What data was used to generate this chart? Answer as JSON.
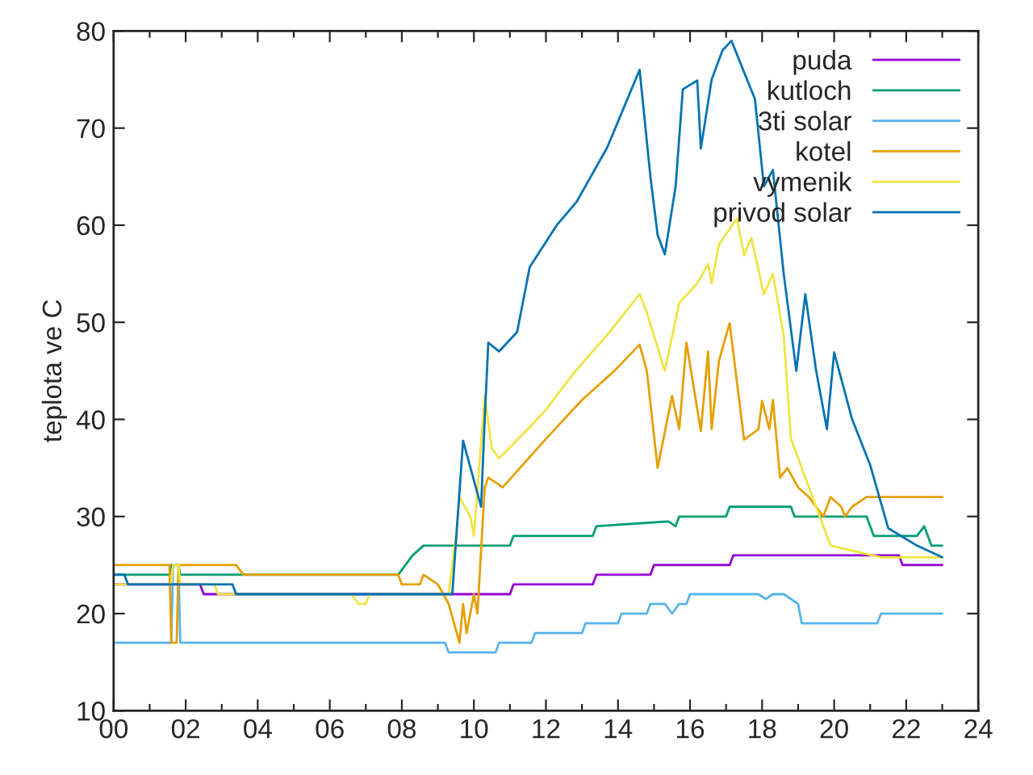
{
  "chart_data": {
    "type": "line",
    "ylabel": "teplota ve C",
    "xlim": [
      0,
      24
    ],
    "ylim": [
      10,
      80
    ],
    "xticks": [
      {
        "value": 0,
        "label": "00"
      },
      {
        "value": 1,
        "label": null
      },
      {
        "value": 2,
        "label": "02"
      },
      {
        "value": 3,
        "label": null
      },
      {
        "value": 4,
        "label": "04"
      },
      {
        "value": 5,
        "label": null
      },
      {
        "value": 6,
        "label": "06"
      },
      {
        "value": 7,
        "label": null
      },
      {
        "value": 8,
        "label": "08"
      },
      {
        "value": 9,
        "label": null
      },
      {
        "value": 10,
        "label": "10"
      },
      {
        "value": 11,
        "label": null
      },
      {
        "value": 12,
        "label": "12"
      },
      {
        "value": 13,
        "label": null
      },
      {
        "value": 14,
        "label": "14"
      },
      {
        "value": 15,
        "label": null
      },
      {
        "value": 16,
        "label": "16"
      },
      {
        "value": 17,
        "label": null
      },
      {
        "value": 18,
        "label": "18"
      },
      {
        "value": 19,
        "label": null
      },
      {
        "value": 20,
        "label": "20"
      },
      {
        "value": 21,
        "label": null
      },
      {
        "value": 22,
        "label": "22"
      },
      {
        "value": 23,
        "label": null
      },
      {
        "value": 24,
        "label": "24"
      }
    ],
    "yticks": [
      10,
      20,
      30,
      40,
      50,
      60,
      70,
      80
    ],
    "grid": false,
    "legend": "top right",
    "marker": "none",
    "line_style": "solid",
    "series": [
      {
        "name": "puda",
        "color": "#9400d3",
        "x": [
          0,
          2.4,
          2.5,
          11.0,
          11.1,
          13.3,
          13.4,
          14.9,
          15.0,
          17.1,
          17.2,
          21.8,
          21.9,
          23.0
        ],
        "values": [
          23,
          23,
          22,
          22,
          23,
          23,
          24,
          24,
          25,
          25,
          26,
          26,
          25,
          25
        ]
      },
      {
        "name": "kutloch",
        "color": "#009e73",
        "x": [
          0,
          1.55,
          1.6,
          1.8,
          1.85,
          7.9,
          8.3,
          8.6,
          11.0,
          11.1,
          13.3,
          13.4,
          15.4,
          15.6,
          15.7,
          17.0,
          17.1,
          18.8,
          18.9,
          20.9,
          21.1,
          22.3,
          22.5,
          22.7,
          23.0
        ],
        "values": [
          24,
          24,
          25,
          25,
          24,
          24,
          26,
          27,
          27,
          28,
          28,
          29,
          29.5,
          29,
          30,
          30,
          31,
          31,
          30,
          30,
          28,
          28,
          29,
          27,
          27
        ]
      },
      {
        "name": "3ti solar",
        "color": "#56b4e9",
        "x": [
          0,
          1.6,
          1.65,
          1.8,
          1.85,
          9.2,
          9.3,
          10.6,
          10.7,
          11.6,
          11.7,
          13.0,
          13.1,
          14.0,
          14.1,
          14.8,
          14.9,
          15.3,
          15.5,
          15.7,
          15.9,
          16.0,
          17.9,
          18.1,
          18.3,
          18.6,
          19.0,
          19.1,
          21.2,
          21.3,
          23.0
        ],
        "values": [
          17,
          17,
          25,
          25,
          17,
          17,
          16,
          16,
          17,
          17,
          18,
          18,
          19,
          19,
          20,
          20,
          21,
          21,
          20,
          21,
          21,
          22,
          22,
          21.5,
          22,
          22,
          21,
          19,
          19,
          20,
          20
        ]
      },
      {
        "name": "kotel",
        "color": "#e69f00",
        "x": [
          0,
          1.55,
          1.6,
          1.75,
          1.8,
          1.85,
          3.4,
          3.6,
          7.9,
          8.0,
          8.5,
          8.6,
          9.0,
          9.3,
          9.6,
          9.7,
          9.8,
          10.0,
          10.1,
          10.3,
          10.4,
          10.8,
          12.0,
          13.0,
          13.9,
          14.6,
          14.8,
          15.1,
          15.5,
          15.7,
          15.9,
          16.3,
          16.5,
          16.6,
          16.8,
          17.1,
          17.5,
          17.9,
          18.0,
          18.2,
          18.3,
          18.5,
          18.7,
          19.0,
          19.3,
          19.7,
          19.9,
          20.2,
          20.3,
          20.5,
          20.9,
          23.0
        ],
        "values": [
          25,
          25,
          17,
          17,
          25,
          25,
          25,
          24,
          24,
          23,
          23,
          24,
          23,
          21,
          17,
          21,
          18,
          22,
          20,
          33,
          34,
          33,
          38,
          42,
          45,
          47.7,
          45,
          35,
          42.4,
          39,
          47.9,
          38.8,
          47,
          39,
          46,
          49.9,
          37.9,
          39,
          41.9,
          39,
          42,
          34,
          35,
          33,
          32,
          30,
          32,
          31,
          30,
          31,
          32,
          32
        ]
      },
      {
        "name": "vymenik",
        "color": "#f0e442",
        "x": [
          0,
          1.6,
          1.65,
          1.8,
          1.85,
          2.8,
          2.9,
          3.4,
          3.5,
          6.6,
          6.8,
          7.0,
          7.1,
          9.3,
          9.5,
          9.6,
          9.9,
          10.0,
          10.3,
          10.5,
          10.7,
          11.5,
          12.0,
          12.8,
          13.7,
          14.6,
          14.8,
          15.3,
          15.7,
          16.2,
          16.5,
          16.6,
          16.8,
          17.3,
          17.5,
          17.7,
          18.05,
          18.3,
          18.6,
          18.8,
          19.4,
          19.9,
          21.3,
          23.0
        ],
        "values": [
          23,
          23,
          25,
          25,
          23,
          23,
          22,
          22,
          22,
          22,
          21,
          21,
          22,
          22,
          28,
          32,
          30,
          28,
          42.4,
          37,
          36,
          39,
          41,
          44.9,
          48.7,
          52.9,
          51,
          45,
          52,
          54,
          56,
          54,
          58,
          60.7,
          56.9,
          58.7,
          52.9,
          55,
          48.6,
          38,
          32,
          27,
          25.8,
          25.8
        ]
      },
      {
        "name": "privod solar",
        "color": "#0072b2",
        "x": [
          0,
          0.3,
          0.4,
          3.3,
          3.4,
          9.3,
          9.4,
          9.7,
          10.2,
          10.3,
          10.4,
          10.7,
          11.2,
          11.55,
          12.3,
          12.85,
          13.7,
          14.6,
          14.9,
          15.1,
          15.3,
          15.6,
          15.8,
          16.2,
          16.3,
          16.6,
          16.9,
          17.15,
          17.55,
          17.8,
          18.05,
          18.3,
          18.6,
          18.95,
          19.2,
          19.5,
          19.8,
          20.0,
          20.5,
          21.0,
          21.5,
          22.3,
          23.0
        ],
        "values": [
          24,
          24,
          23,
          23,
          22,
          22,
          22,
          37.8,
          31,
          40,
          47.9,
          47,
          49,
          55.7,
          60,
          62.4,
          68,
          76,
          65,
          59,
          57,
          64,
          74,
          74.9,
          67.9,
          75,
          78,
          79,
          75.3,
          73,
          64,
          65.7,
          55,
          45,
          52.9,
          45,
          39,
          46.9,
          40,
          35.3,
          28.8,
          27,
          25.8
        ]
      }
    ]
  }
}
